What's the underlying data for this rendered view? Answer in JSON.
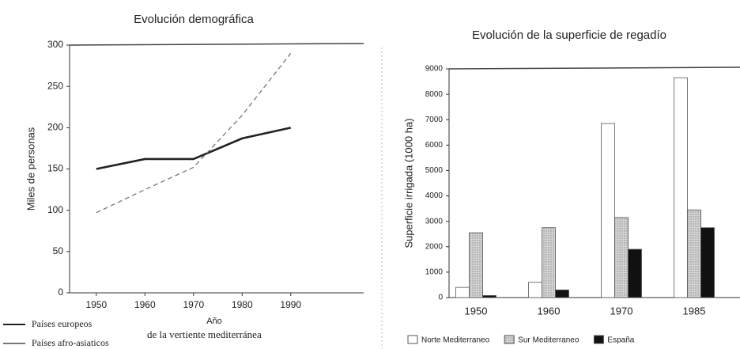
{
  "chart_data": [
    {
      "type": "line",
      "title": "Evolución demográfica",
      "ylabel": "Miles de personas",
      "xlabel": "Año",
      "note": "de la vertiente mediterránea",
      "x": [
        1950,
        1960,
        1970,
        1980,
        1990
      ],
      "xlim": [
        1944.5,
        2005
      ],
      "xticks": [
        1950,
        1960,
        1970,
        1980,
        1990
      ],
      "ylim": [
        0,
        300
      ],
      "yticks": [
        0,
        50,
        100,
        150,
        200,
        250,
        300
      ],
      "legend": "bottom-left",
      "series": [
        {
          "name": "Países europeos",
          "color": "#222222",
          "style": "solid",
          "values": [
            150,
            162,
            162,
            187,
            200
          ]
        },
        {
          "name": "Países afro-asiaticos",
          "color": "#777777",
          "style": "dashed",
          "values": [
            97,
            125,
            152,
            215,
            290
          ]
        }
      ]
    },
    {
      "type": "bar",
      "title": "Evolución de la superficie de regadío",
      "ylabel": "Superficie irrigada (1000 ha)",
      "categories": [
        "1950",
        "1960",
        "1970",
        "1985"
      ],
      "ylim": [
        0,
        9000
      ],
      "yticks": [
        0,
        1000,
        2000,
        3000,
        4000,
        5000,
        6000,
        7000,
        8000,
        9000
      ],
      "legend": "bottom",
      "series": [
        {
          "name": "Norte Mediterraneo",
          "color": "#ffffff",
          "values": [
            400,
            600,
            6850,
            8650
          ]
        },
        {
          "name": "Sur Mediterraneo",
          "color": "#c8c8c8",
          "values": [
            2550,
            2750,
            3150,
            3450
          ]
        },
        {
          "name": "España",
          "color": "#111111",
          "values": [
            80,
            300,
            1900,
            2750
          ]
        }
      ]
    }
  ]
}
